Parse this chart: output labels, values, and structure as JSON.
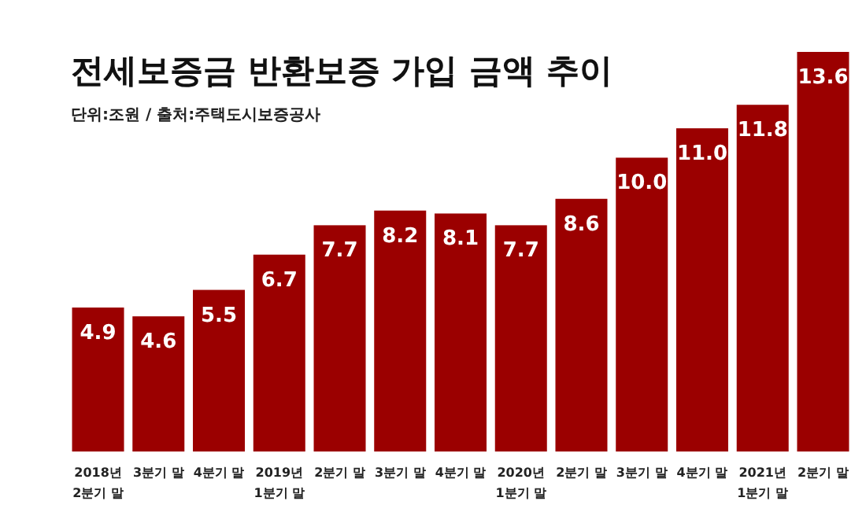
{
  "chart_data": {
    "type": "bar",
    "title": "전세보증금 반환보증 가입 금액 추이",
    "subtitle": "단위:조원 / 출처:주택도시보증공사",
    "categories": [
      "2018년\n2분기 말",
      "3분기 말",
      "4분기 말",
      "2019년\n1분기 말",
      "2분기 말",
      "3분기 말",
      "4분기 말",
      "2020년\n1분기 말",
      "2분기 말",
      "3분기 말",
      "4분기 말",
      "2021년\n1분기 말",
      "2분기 말"
    ],
    "values": [
      4.9,
      4.6,
      5.5,
      6.7,
      7.7,
      8.2,
      8.1,
      7.7,
      8.6,
      10.0,
      11.0,
      11.8,
      13.6
    ],
    "value_labels": [
      "4.9",
      "4.6",
      "5.5",
      "6.7",
      "7.7",
      "8.2",
      "8.1",
      "7.7",
      "8.6",
      "10.0",
      "11.0",
      "11.8",
      "13.6"
    ],
    "color": "#9b0000"
  }
}
